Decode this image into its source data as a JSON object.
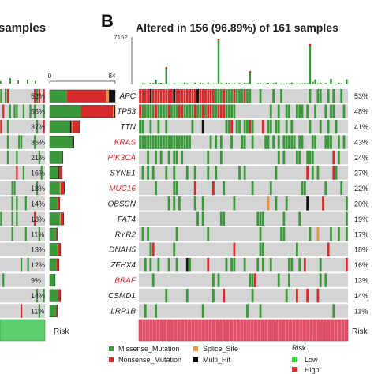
{
  "panel_a": {
    "title_fragment": "samples",
    "bar_axis_min": "0",
    "bar_axis_max": "84",
    "risk_label": "Risk"
  },
  "panel_b": {
    "letter": "B",
    "title": "Altered in 156 (96.89%) of 161 samples",
    "top_axis_max": "7152",
    "risk_label": "Risk"
  },
  "legend": {
    "mutation_types": [
      {
        "label": "Missense_Mutation",
        "color": "#3a9a3a"
      },
      {
        "label": "Nonsense_Mutation",
        "color": "#d52b2b"
      },
      {
        "label": "Splice_Site",
        "color": "#e8953a"
      },
      {
        "label": "Multi_Hit",
        "color": "#111111"
      }
    ],
    "risk_title": "Risk",
    "risk_levels": [
      {
        "label": "Low",
        "color": "#3cd64a"
      },
      {
        "label": "High",
        "color": "#e22e2e"
      }
    ]
  },
  "colors": {
    "missense": "#3a9a3a",
    "nonsense": "#d52b2b",
    "splice": "#e8953a",
    "multi": "#111111",
    "empty": "#d4d4d4",
    "highlight_gene": "#d42a2a",
    "risk_low": "#3cd64a",
    "risk_high": "#e0506a"
  },
  "chart_data": [
    {
      "type": "bar",
      "panel": "A",
      "categories": [
        "APC",
        "TP53",
        "TTN",
        "KRAS",
        "PIK3CA",
        "SYNE1",
        "MUC16",
        "OBSCN",
        "FAT4",
        "RYR2",
        "DNAH5",
        "ZFHX4",
        "BRAF",
        "CSMD1",
        "LRP1B"
      ],
      "percent_labels": [
        "52%",
        "56%",
        "37%",
        "35%",
        "21%",
        "16%",
        "18%",
        "14%",
        "18%",
        "11%",
        "13%",
        "12%",
        "9%",
        "14%",
        "11%"
      ],
      "series": [
        {
          "name": "Missense_Mutation",
          "values": [
            22,
            40,
            26,
            29,
            16,
            11,
            13,
            10,
            13,
            8,
            10,
            9,
            7,
            11,
            8
          ]
        },
        {
          "name": "Nonsense_Mutation",
          "values": [
            50,
            41,
            9,
            0,
            1,
            4,
            5,
            3,
            4,
            2,
            3,
            3,
            0,
            3,
            2
          ]
        },
        {
          "name": "Splice_Site",
          "values": [
            4,
            2,
            1,
            0,
            0,
            0,
            1,
            0,
            1,
            0,
            1,
            0,
            0,
            0,
            0
          ]
        },
        {
          "name": "Multi_Hit",
          "values": [
            8,
            1,
            2,
            2,
            0,
            1,
            0,
            0,
            0,
            0,
            0,
            0,
            0,
            0,
            0
          ]
        }
      ],
      "xlim": [
        0,
        84
      ]
    },
    {
      "type": "heatmap",
      "panel": "B",
      "title": "Altered in 156 (96.89%) of 161 samples",
      "genes": [
        "APC",
        "TP53",
        "TTN",
        "KRAS",
        "PIK3CA",
        "SYNE1",
        "MUC16",
        "OBSCN",
        "FAT4",
        "RYR2",
        "DNAH5",
        "ZFHX4",
        "BRAF",
        "CSMD1",
        "LRP1B"
      ],
      "percent_labels": [
        "53%",
        "48%",
        "41%",
        "43%",
        "24%",
        "27%",
        "22%",
        "20%",
        "19%",
        "17%",
        "18%",
        "16%",
        "13%",
        "14%",
        "11%"
      ],
      "highlighted_genes": [
        "KRAS",
        "PIK3CA",
        "MUC16",
        "BRAF"
      ],
      "top_bar_ylim": [
        0,
        7152
      ],
      "top_bar_peaks": [
        {
          "sample_fraction": 0.37,
          "value": 7152
        },
        {
          "sample_fraction": 0.81,
          "value": 6300
        },
        {
          "sample_fraction": 0.13,
          "value": 2700
        },
        {
          "sample_fraction": 0.52,
          "value": 2100
        }
      ],
      "samples": 161,
      "risk_group": "High"
    }
  ]
}
